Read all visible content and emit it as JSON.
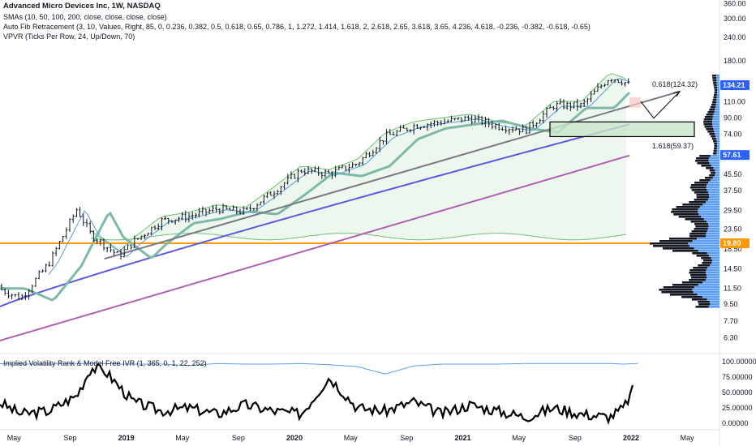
{
  "header": {
    "title": "Advanced Micro Devices Inc, 1W, NASDAQ",
    "sma_legend": "SMAs (10, 50, 100, 200, close, close, close, close)",
    "fib_legend": "Auto Fib Retracement (3, 10, Values, Right, 85, 0, 0.236, 0.382, 0.5, 0.618, 0.65, 0.786, 1, 1.272, 1.414, 1.618, 2, 2.618, 2.65, 3.618, 3.65, 4.236, 4.618, -0.236, -0.382, -0.618, -0.65)",
    "vpvr_legend": "VPVR (Ticks Per Row, 24, Up/Down, 70)",
    "indicator_legend": "Implied Volatility Rank & Model Free IVR (1, 365, 0, 1, 22, 252)"
  },
  "colors": {
    "price": "#131722",
    "sma10": "#5b9bd5",
    "sma50": "#7cb9a8",
    "sma100": "#5b5be0",
    "sma200": "#b05fb5",
    "trendline": "#787b86",
    "envelope": "#6fbf73",
    "horizontal_level": "#ff9800",
    "zone_fill": "#c8e6c9",
    "vpvr_up": "#5b9cf6",
    "vpvr_down": "#131722",
    "iv_line": "#000000",
    "ivr_line": "#5b9cf6"
  },
  "price_axis": {
    "currency": "USD",
    "ticks": [
      "360.00",
      "300.00",
      "240.00",
      "180.00",
      "110.00",
      "90.00",
      "74.00",
      "57.61",
      "45.50",
      "37.50",
      "29.50",
      "23.50",
      "18.50",
      "14.50",
      "11.50",
      "9.50",
      "7.70",
      "6.30"
    ],
    "current_price": "134.21",
    "level_price": "19.80",
    "sma200_price": "57.61"
  },
  "time_axis": {
    "labels": [
      "May",
      "Sep",
      "2019",
      "May",
      "Sep",
      "2020",
      "May",
      "Sep",
      "2021",
      "May",
      "Sep",
      "2022",
      "May"
    ]
  },
  "indicator_axis": {
    "ticks": [
      "100.00000",
      "75.00000",
      "50.00000",
      "25.00000",
      "0.00000"
    ]
  },
  "annotations": {
    "fib_upper": "0.618(124.32)",
    "fib_lower": "1.618(59.37)"
  },
  "chart_data": [
    {
      "type": "line",
      "title": "Advanced Micro Devices Inc, 1W, NASDAQ",
      "yscale": "log",
      "ylim": [
        5.8,
        420
      ],
      "x": [
        "2018-03",
        "2018-05",
        "2018-07",
        "2018-09",
        "2018-10",
        "2018-12",
        "2019-01",
        "2019-03",
        "2019-05",
        "2019-07",
        "2019-09",
        "2019-11",
        "2020-01",
        "2020-03",
        "2020-05",
        "2020-07",
        "2020-09",
        "2020-11",
        "2021-01",
        "2021-03",
        "2021-05",
        "2021-07",
        "2021-09",
        "2021-11",
        "2021-12",
        "2022-01"
      ],
      "series": [
        {
          "values": [
            11.8,
            10.2,
            15.5,
            30.0,
            22.0,
            17.0,
            20.0,
            26.0,
            27.5,
            30.0,
            29.0,
            37.0,
            48.0,
            46.0,
            52.0,
            72.0,
            82.0,
            86.0,
            90.0,
            82.0,
            78.0,
            105.0,
            105.0,
            148.0,
            140.0,
            126.0
          ]
        }
      ]
    },
    {
      "type": "line",
      "title": "Implied Volatility Rank & Model Free IVR (1, 365, 0, 1, 22, 252)",
      "ylim": [
        0,
        100
      ],
      "x": [
        "2018-03",
        "2018-05",
        "2018-07",
        "2018-09",
        "2018-10",
        "2018-11",
        "2018-12",
        "2019-01",
        "2019-03",
        "2019-05",
        "2019-07",
        "2019-09",
        "2019-11",
        "2020-01",
        "2020-03",
        "2020-05",
        "2020-07",
        "2020-09",
        "2020-11",
        "2021-01",
        "2021-03",
        "2021-05",
        "2021-07",
        "2021-09",
        "2021-11",
        "2021-12",
        "2022-01"
      ],
      "series": [
        {
          "values": [
            40,
            15,
            20,
            45,
            90,
            85,
            60,
            35,
            20,
            25,
            15,
            30,
            20,
            15,
            75,
            25,
            20,
            35,
            15,
            30,
            20,
            10,
            25,
            15,
            10,
            25,
            70
          ]
        },
        {
          "values": [
            97,
            96,
            96,
            97,
            97,
            97,
            96,
            96,
            96,
            94,
            97,
            96,
            96,
            97,
            95,
            92,
            80,
            93,
            96,
            96,
            96,
            97,
            97,
            97,
            97,
            96,
            97
          ]
        }
      ]
    }
  ]
}
